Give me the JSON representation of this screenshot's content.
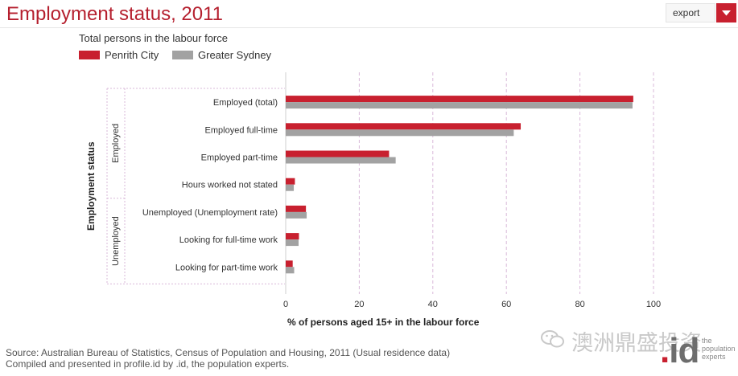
{
  "header": {
    "title": "Employment status, 2011",
    "export_label": "export",
    "export_icon": "chevron-down-icon"
  },
  "legend": {
    "subtitle": "Total persons in the labour force",
    "items": [
      {
        "label": "Penrith City",
        "color": "#c8202f"
      },
      {
        "label": "Greater Sydney",
        "color": "#a2a2a2"
      }
    ]
  },
  "chart_data": {
    "type": "bar",
    "orientation": "horizontal",
    "title": "Employment status, 2011",
    "subtitle": "Total persons in the labour force",
    "ylabel": "Employment status",
    "xlabel": "% of persons aged 15+ in the labour force",
    "xlim": [
      0,
      100
    ],
    "xticks": [
      0,
      20,
      40,
      60,
      80,
      100
    ],
    "grid": true,
    "legend_position": "top-left",
    "groups": [
      {
        "label": "Employed",
        "categories": [
          "Employed (total)",
          "Employed full-time",
          "Employed part-time",
          "Hours worked not stated"
        ]
      },
      {
        "label": "Unemployed",
        "categories": [
          "Unemployed (Unemployment rate)",
          "Looking for full-time work",
          "Looking for part-time work"
        ]
      }
    ],
    "categories": [
      "Employed (total)",
      "Employed full-time",
      "Employed part-time",
      "Hours worked not stated",
      "Unemployed (Unemployment rate)",
      "Looking for full-time work",
      "Looking for part-time work"
    ],
    "series": [
      {
        "name": "Penrith City",
        "color": "#c8202f",
        "values": [
          94.5,
          63.9,
          28.1,
          2.5,
          5.5,
          3.6,
          1.9
        ]
      },
      {
        "name": "Greater Sydney",
        "color": "#a2a2a2",
        "values": [
          94.3,
          62.0,
          29.9,
          2.2,
          5.7,
          3.5,
          2.3
        ]
      }
    ]
  },
  "footer": {
    "source": "Source: Australian Bureau of Statistics, Census of Population and Housing, 2011 (Usual residence data)",
    "compiled": "Compiled and presented in profile.id by .id, the population experts."
  },
  "watermark": {
    "text": "澳洲鼎盛投资",
    "icon": "wechat-icon"
  },
  "logo": {
    "brand_id": "id",
    "brand_dot": ".",
    "tagline_1": "the",
    "tagline_2": "population",
    "tagline_3": "experts"
  }
}
